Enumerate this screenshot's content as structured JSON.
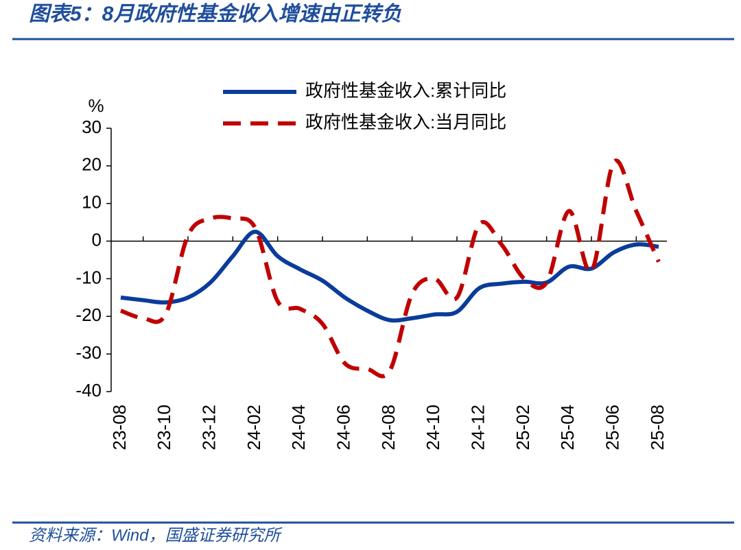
{
  "chart_data": {
    "type": "line",
    "title": "图表5：8月政府性基金收入增速由正转负",
    "source": "资料来源：Wind，国盛证券研究所",
    "ylabel": "%",
    "categories": [
      "23-08",
      null,
      "23-10",
      null,
      "23-12",
      null,
      "24-02",
      null,
      "24-04",
      null,
      "24-06",
      null,
      "24-08",
      null,
      "24-10",
      null,
      "24-12",
      null,
      "25-02",
      null,
      "25-04",
      null,
      "25-06",
      null,
      "25-08"
    ],
    "series": [
      {
        "name": "政府性基金收入:累计同比",
        "color": "#0a3c9a",
        "dash": false,
        "values": [
          -15,
          -15.7,
          -16.3,
          -15,
          -11,
          -4,
          2.5,
          -4,
          -7.5,
          -10.5,
          -15,
          -18.5,
          -21,
          -20.5,
          -19.5,
          -18.8,
          -12.5,
          -11.3,
          -10.8,
          -11,
          -6.8,
          -7.3,
          -3,
          -0.9,
          -1.5
        ]
      },
      {
        "name": "政府性基金收入:当月同比",
        "color": "#c00000",
        "dash": true,
        "values": [
          -18.5,
          -20.5,
          -19.5,
          1.5,
          6,
          6,
          3.5,
          -16,
          -18,
          -22,
          -32.5,
          -34,
          -34.5,
          -14,
          -10,
          -15,
          4.5,
          -1,
          -10,
          -11,
          8,
          -8,
          21,
          8,
          -5.5
        ]
      }
    ],
    "ylim": [
      -40,
      30
    ],
    "yticks": [
      -40,
      -30,
      -20,
      -10,
      0,
      10,
      20,
      30
    ]
  }
}
